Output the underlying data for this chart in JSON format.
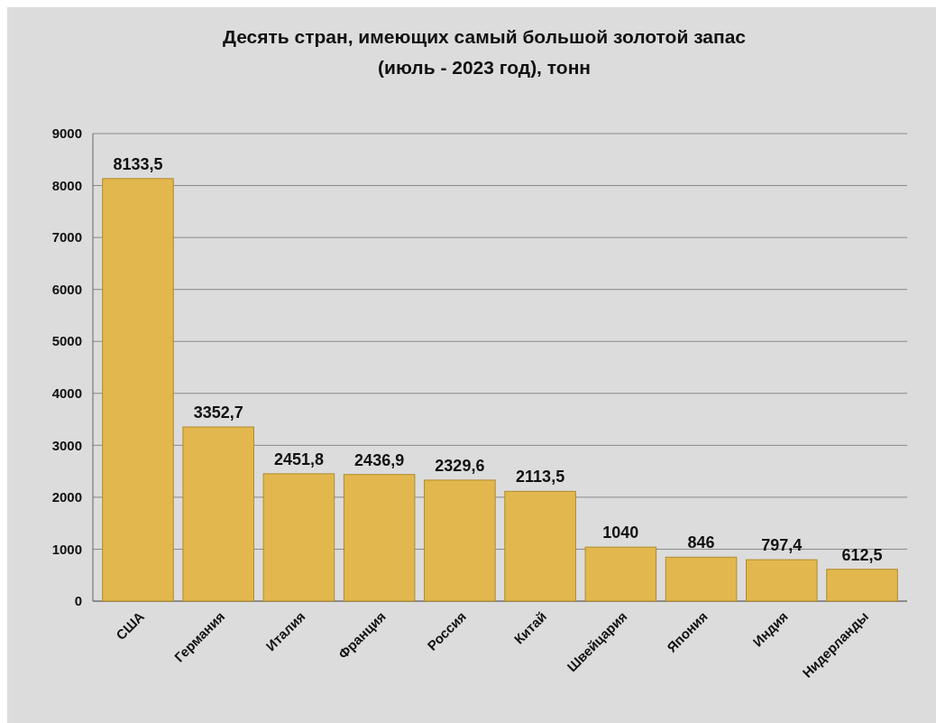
{
  "chart_data": {
    "type": "bar",
    "title": "Десять стран, имеющих самый большой золотой запас\n(июль - 2023 год), тонн",
    "categories": [
      "США",
      "Германия",
      "Италия",
      "Франция",
      "Россия",
      "Китай",
      "Швейцария",
      "Япония",
      "Индия",
      "Нидерланды"
    ],
    "values": [
      8133.5,
      3352.7,
      2451.8,
      2436.9,
      2329.6,
      2113.5,
      1040,
      846,
      797.4,
      612.5
    ],
    "value_labels": [
      "8133,5",
      "3352,7",
      "2451,8",
      "2436,9",
      "2329,6",
      "2113,5",
      "1040",
      "846",
      "797,4",
      "612,5"
    ],
    "color": "#e2b84e",
    "ylim": [
      0,
      9000
    ],
    "yticks": [
      0,
      1000,
      2000,
      3000,
      4000,
      5000,
      6000,
      7000,
      8000,
      9000
    ],
    "grid": "y"
  }
}
